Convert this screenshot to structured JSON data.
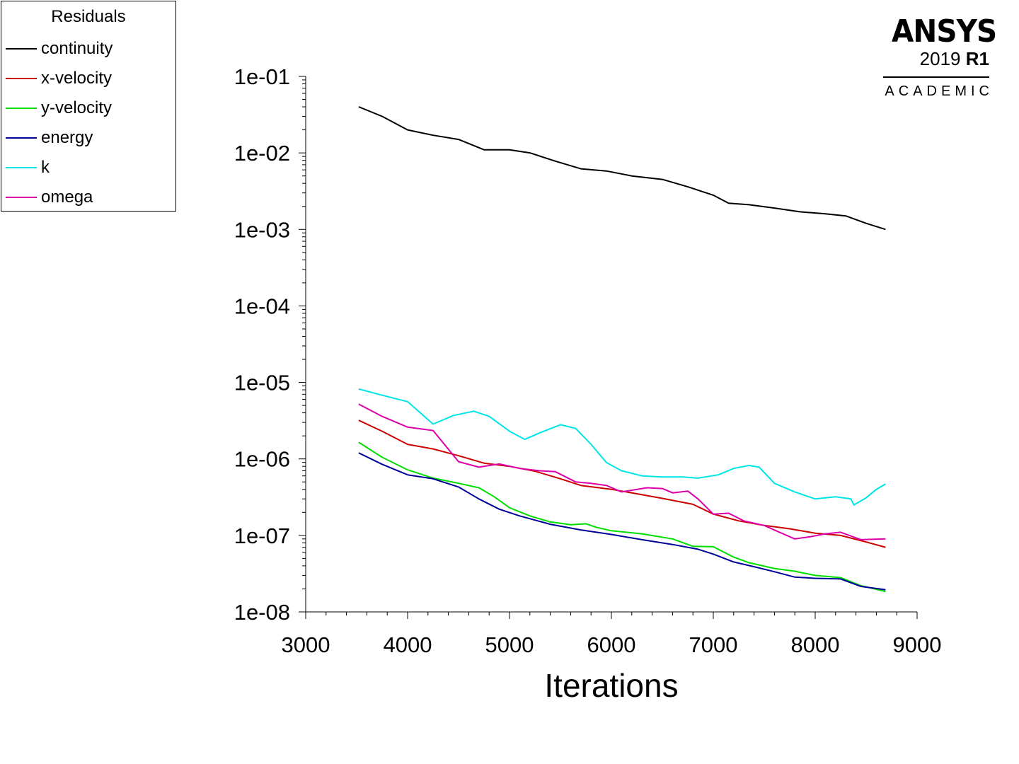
{
  "legend": {
    "title": "Residuals",
    "items": [
      {
        "label": "continuity",
        "color": "#000000"
      },
      {
        "label": "x-velocity",
        "color": "#cc0000"
      },
      {
        "label": "y-velocity",
        "color": "#00dd00"
      },
      {
        "label": "energy",
        "color": "#000099"
      },
      {
        "label": "k",
        "color": "#00e5e5"
      },
      {
        "label": "omega",
        "color": "#dd00aa"
      }
    ]
  },
  "logo": {
    "name": "ANSYS",
    "version_year": "2019",
    "version_release": "R1",
    "edition": "ACADEMIC"
  },
  "chart_data": {
    "type": "line",
    "title": "",
    "xlabel": "Iterations",
    "ylabel": "",
    "xlim": [
      3000,
      9000
    ],
    "ylim": [
      1e-08,
      0.1
    ],
    "yscale": "log",
    "xticks": [
      "3000",
      "4000",
      "5000",
      "6000",
      "7000",
      "8000",
      "9000"
    ],
    "yticks": [
      "1e-01",
      "1e-02",
      "1e-03",
      "1e-04",
      "1e-05",
      "1e-06",
      "1e-07",
      "1e-08"
    ],
    "grid": false,
    "legend_position": "top-left",
    "series": [
      {
        "name": "continuity",
        "color": "#000000",
        "x": [
          3520,
          3750,
          4000,
          4250,
          4500,
          4750,
          5000,
          5200,
          5450,
          5700,
          5950,
          6200,
          6500,
          6750,
          7000,
          7150,
          7350,
          7600,
          7850,
          8100,
          8300,
          8500,
          8690
        ],
        "y": [
          0.04,
          0.03,
          0.02,
          0.017,
          0.015,
          0.011,
          0.011,
          0.01,
          0.0078,
          0.0062,
          0.0058,
          0.005,
          0.0045,
          0.0036,
          0.0028,
          0.0022,
          0.0021,
          0.0019,
          0.0017,
          0.0016,
          0.0015,
          0.0012,
          0.001
        ]
      },
      {
        "name": "x-velocity",
        "color": "#cc0000",
        "x": [
          3520,
          3750,
          4000,
          4250,
          4500,
          4750,
          5000,
          5250,
          5500,
          5700,
          6000,
          6250,
          6500,
          6800,
          7000,
          7250,
          7500,
          7750,
          8000,
          8250,
          8500,
          8690
        ],
        "y": [
          3.2e-06,
          2.3e-06,
          1.55e-06,
          1.35e-06,
          1.1e-06,
          8.8e-07,
          8e-07,
          6.9e-07,
          5.5e-07,
          4.5e-07,
          4e-07,
          3.5e-07,
          3.05e-07,
          2.55e-07,
          1.9e-07,
          1.55e-07,
          1.35e-07,
          1.22e-07,
          1.07e-07,
          1e-07,
          8.2e-08,
          7e-08
        ]
      },
      {
        "name": "y-velocity",
        "color": "#00dd00",
        "x": [
          3520,
          3750,
          4000,
          4250,
          4500,
          4700,
          4850,
          5000,
          5200,
          5400,
          5600,
          5750,
          5850,
          6000,
          6300,
          6600,
          6800,
          7000,
          7200,
          7350,
          7600,
          7800,
          8000,
          8250,
          8450,
          8690
        ],
        "y": [
          1.65e-06,
          1.05e-06,
          7.2e-07,
          5.6e-07,
          4.8e-07,
          4.2e-07,
          3.2e-07,
          2.3e-07,
          1.8e-07,
          1.5e-07,
          1.38e-07,
          1.42e-07,
          1.28e-07,
          1.15e-07,
          1.05e-07,
          9e-08,
          7.2e-08,
          7.1e-08,
          5.2e-08,
          4.4e-08,
          3.7e-08,
          3.4e-08,
          3e-08,
          2.8e-08,
          2.2e-08,
          1.85e-08
        ]
      },
      {
        "name": "energy",
        "color": "#000099",
        "x": [
          3520,
          3750,
          4000,
          4250,
          4500,
          4700,
          4900,
          5100,
          5400,
          5700,
          6000,
          6300,
          6600,
          6850,
          7000,
          7200,
          7400,
          7600,
          7800,
          8000,
          8250,
          8450,
          8690
        ],
        "y": [
          1.2e-06,
          8.5e-07,
          6.2e-07,
          5.5e-07,
          4.3e-07,
          3e-07,
          2.2e-07,
          1.8e-07,
          1.4e-07,
          1.18e-07,
          1.03e-07,
          8.8e-08,
          7.6e-08,
          6.6e-08,
          5.7e-08,
          4.5e-08,
          3.9e-08,
          3.35e-08,
          2.85e-08,
          2.75e-08,
          2.7e-08,
          2.15e-08,
          1.95e-08
        ]
      },
      {
        "name": "k",
        "color": "#00e5e5",
        "x": [
          3520,
          3750,
          4000,
          4250,
          4450,
          4650,
          4800,
          5000,
          5150,
          5300,
          5500,
          5650,
          5800,
          5950,
          6100,
          6300,
          6500,
          6700,
          6850,
          7050,
          7200,
          7350,
          7450,
          7600,
          7800,
          8000,
          8200,
          8350,
          8380,
          8500,
          8600,
          8690
        ],
        "y": [
          8.2e-06,
          6.8e-06,
          5.6e-06,
          2.85e-06,
          3.7e-06,
          4.2e-06,
          3.6e-06,
          2.3e-06,
          1.8e-06,
          2.2e-06,
          2.8e-06,
          2.5e-06,
          1.55e-06,
          9e-07,
          7e-07,
          6e-07,
          5.8e-07,
          5.8e-07,
          5.6e-07,
          6.2e-07,
          7.5e-07,
          8.2e-07,
          7.8e-07,
          4.8e-07,
          3.7e-07,
          3e-07,
          3.2e-07,
          3e-07,
          2.5e-07,
          3.1e-07,
          4e-07,
          4.7e-07
        ]
      },
      {
        "name": "omega",
        "color": "#dd00aa",
        "x": [
          3520,
          3750,
          4000,
          4250,
          4500,
          4700,
          4900,
          5100,
          5300,
          5450,
          5650,
          5800,
          5950,
          6100,
          6350,
          6500,
          6600,
          6750,
          6850,
          7000,
          7150,
          7300,
          7500,
          7650,
          7800,
          7950,
          8100,
          8250,
          8450,
          8690
        ],
        "y": [
          5.2e-06,
          3.6e-06,
          2.6e-06,
          2.35e-06,
          9.2e-07,
          7.8e-07,
          8.6e-07,
          7.5e-07,
          7e-07,
          6.8e-07,
          5e-07,
          4.8e-07,
          4.5e-07,
          3.7e-07,
          4.2e-07,
          4.1e-07,
          3.6e-07,
          3.8e-07,
          3e-07,
          1.9e-07,
          1.95e-07,
          1.55e-07,
          1.35e-07,
          1.1e-07,
          9e-08,
          9.6e-08,
          1.05e-07,
          1.1e-07,
          8.8e-08,
          9e-08
        ]
      }
    ]
  }
}
